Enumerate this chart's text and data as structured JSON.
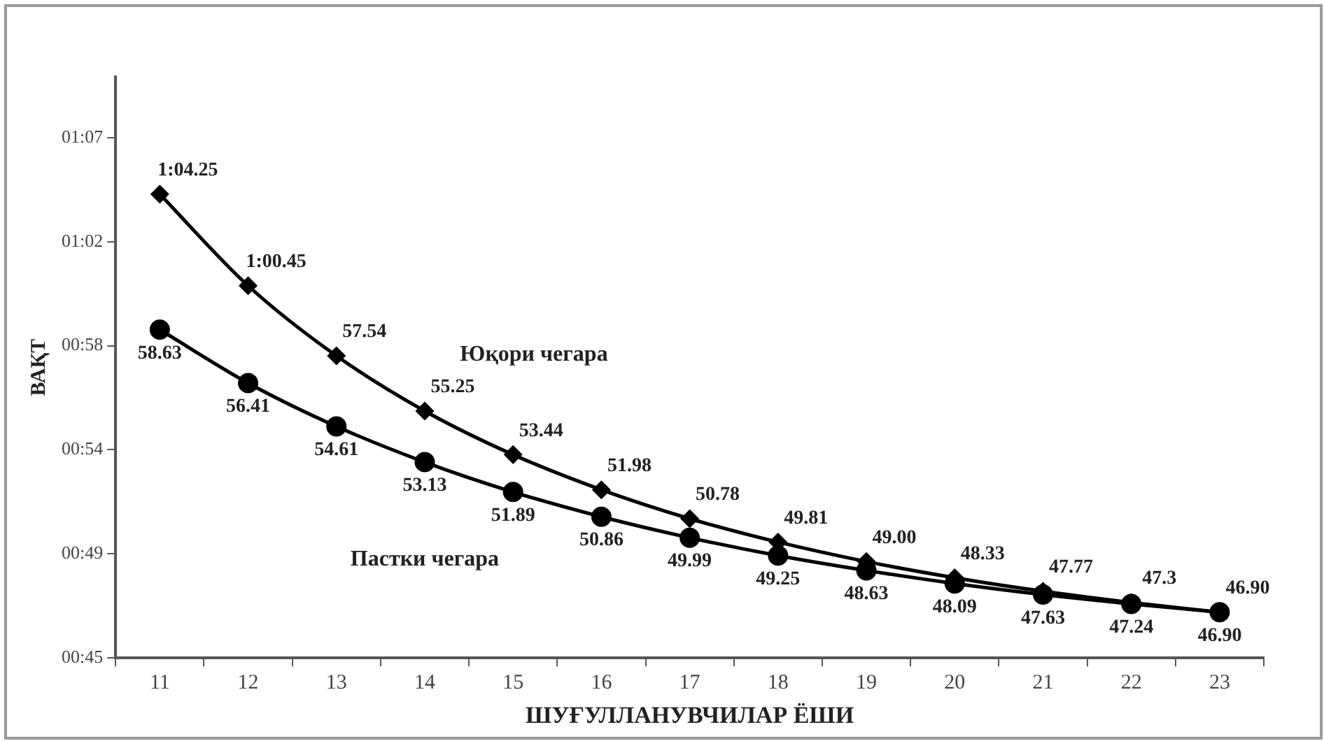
{
  "chart_data": {
    "type": "line",
    "xlabel": "ШУҒУЛЛАНУВЧИЛАР ЁШИ",
    "ylabel": "ВАҚТ",
    "categories": [
      "11",
      "12",
      "13",
      "14",
      "15",
      "16",
      "17",
      "18",
      "19",
      "20",
      "21",
      "22",
      "23"
    ],
    "series": [
      {
        "name": "Юқори чегара",
        "color": "#000000",
        "marker": "diamond",
        "values": [
          64.25,
          60.45,
          57.54,
          55.25,
          53.44,
          51.98,
          50.78,
          49.81,
          49.0,
          48.33,
          47.77,
          47.3,
          46.9
        ],
        "value_labels": [
          "1:04.25",
          "1:00.45",
          "57.54",
          "55.25",
          "53.44",
          "51.98",
          "50.78",
          "49.81",
          "49.00",
          "48.33",
          "47.77",
          "47.3",
          "46.90"
        ]
      },
      {
        "name": "Пастки чегара",
        "color": "#000000",
        "marker": "circle",
        "values": [
          58.63,
          56.41,
          54.61,
          53.13,
          51.89,
          50.86,
          49.99,
          49.25,
          48.63,
          48.09,
          47.63,
          47.24,
          46.9
        ],
        "value_labels": [
          "58.63",
          "56.41",
          "54.61",
          "53.13",
          "51.89",
          "50.86",
          "49.99",
          "49.25",
          "48.63",
          "48.09",
          "47.63",
          "47.24",
          "46.90"
        ]
      }
    ],
    "ylim": [
      45,
      69.12
    ],
    "yticks": [
      {
        "value": 45,
        "label": "00:45"
      },
      {
        "value": 49.32,
        "label": "00:49"
      },
      {
        "value": 53.64,
        "label": "00:54"
      },
      {
        "value": 57.96,
        "label": "00:58"
      },
      {
        "value": 62.28,
        "label": "01:02"
      },
      {
        "value": 66.6,
        "label": "01:07"
      }
    ],
    "grid": false,
    "legend": false,
    "line_style": "solid"
  }
}
